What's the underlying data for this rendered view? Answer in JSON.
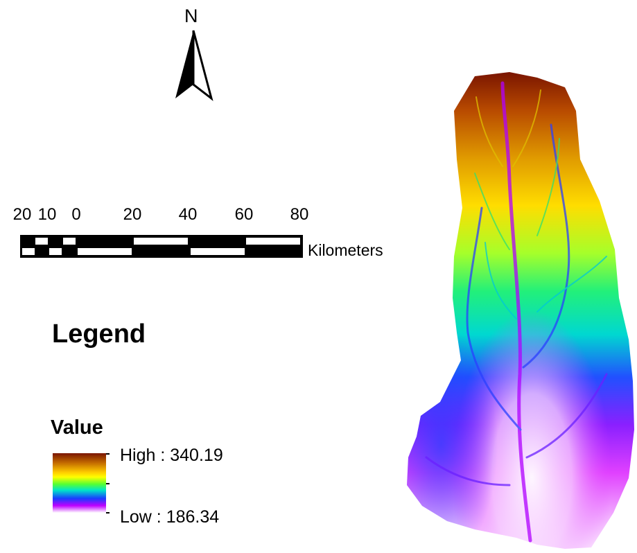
{
  "north_arrow": {
    "label": "N",
    "icon": "north-arrow-icon"
  },
  "scale_bar": {
    "ticks": [
      "20",
      "10",
      "0",
      "20",
      "40",
      "60",
      "80"
    ],
    "units": "Kilometers"
  },
  "legend": {
    "title": "Legend",
    "layer_title": "Value",
    "high_label": "High : 340.19",
    "low_label": "Low : 186.34",
    "color_ramp": [
      "#7a1500",
      "#c26a00",
      "#ffcc00",
      "#ffff00",
      "#55ff33",
      "#00e6c8",
      "#1a3cff",
      "#c000ff",
      "#ffffff"
    ]
  },
  "map": {
    "layer": "elevation-raster",
    "value_range": [
      186.34,
      340.19
    ]
  }
}
